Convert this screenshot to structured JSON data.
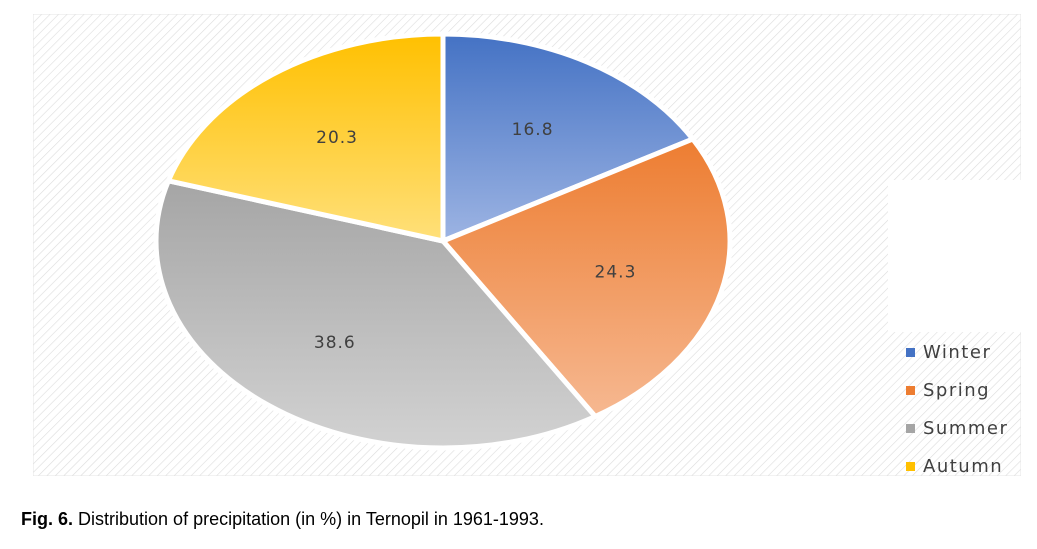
{
  "chart_data": {
    "type": "pie",
    "title": "",
    "categories": [
      "Winter",
      "Spring",
      "Summer",
      "Autumn"
    ],
    "values": [
      16.8,
      24.3,
      38.6,
      20.3
    ],
    "data_labels": [
      "16.8",
      "24.3",
      "38.6",
      "20.3"
    ],
    "colors": [
      "#4472C4",
      "#ED7D31",
      "#A5A5A5",
      "#FFC000"
    ],
    "legend": {
      "position": "right",
      "entries": [
        "Winter",
        "Spring",
        "Summer",
        "Autumn"
      ]
    },
    "start_angle_deg": 0,
    "direction": "clockwise",
    "background": "diagonal-hatch"
  },
  "caption": {
    "label": "Fig. 6.",
    "text": " Distribution of precipitation (in %) in Ternopil in 1961-1993."
  }
}
